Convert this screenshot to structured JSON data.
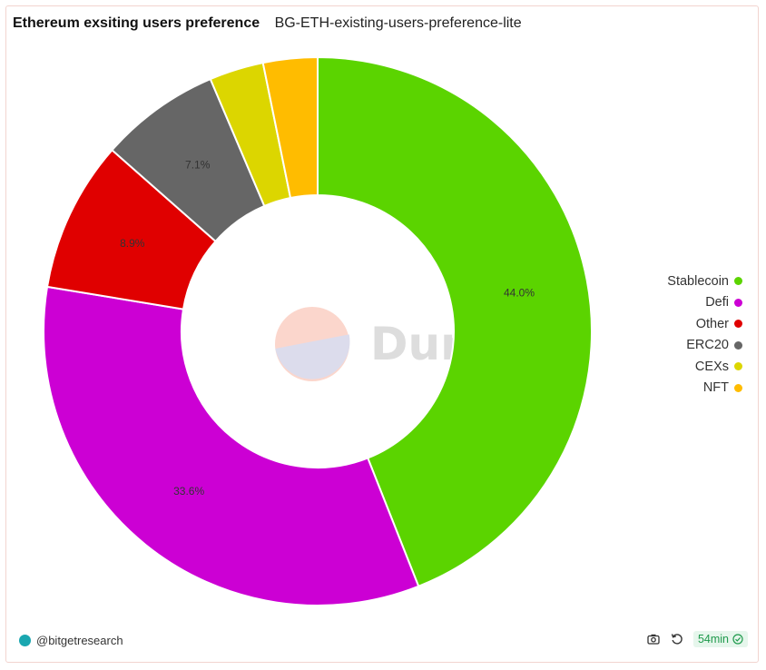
{
  "header": {
    "title": "Ethereum exsiting users preference",
    "query_name": "BG-ETH-existing-users-preference-lite"
  },
  "watermark": {
    "text": "Dune"
  },
  "chart_data": {
    "type": "pie",
    "donut": true,
    "legend_placement": "right",
    "categories": [
      "Stablecoin",
      "Defi",
      "Other",
      "ERC20",
      "CEXs",
      "NFT"
    ],
    "values": [
      44.0,
      33.6,
      8.9,
      7.1,
      3.2,
      3.2
    ],
    "data_labels": [
      "44.0%",
      "33.6%",
      "8.9%",
      "7.1%",
      "",
      ""
    ],
    "colors": [
      "#5bd400",
      "#cc00d4",
      "#e00000",
      "#666666",
      "#dcd600",
      "#ffbc00"
    ]
  },
  "footer": {
    "author": "@bitgetresearch",
    "refresh_label": "54min"
  }
}
